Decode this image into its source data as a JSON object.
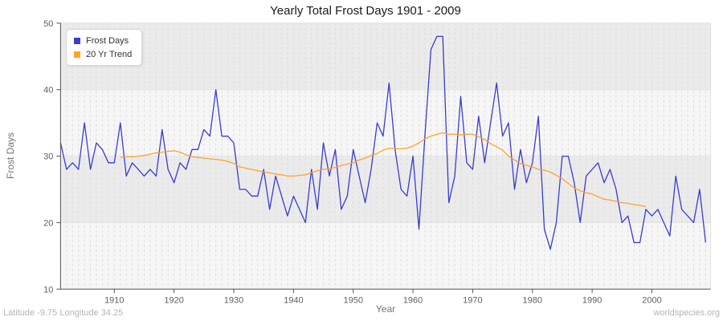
{
  "title": "Yearly Total Frost Days 1901 - 2009",
  "footer": {
    "left": "Latitude -9.75 Longitude 34.25",
    "right": "worldspecies.org"
  },
  "legend": [
    {
      "label": "Frost Days",
      "color": "#3b3bd1"
    },
    {
      "label": "20 Yr Trend",
      "color": "#ffa428"
    }
  ],
  "colors": {
    "frost_line": "#3b3bd1",
    "trend_line": "#ffa428",
    "band_dark": "#ebebeb",
    "band_light": "#f6f6f6",
    "grid": "#dcdcdc",
    "hgrid": "#e2e2e2",
    "spine": "#555555",
    "tick_text": "#606060",
    "axis_label": "#757575",
    "title_text": "#1a1a1a"
  },
  "chart_data": {
    "type": "line",
    "title": "Yearly Total Frost Days 1901 - 2009",
    "xlabel": "Year",
    "ylabel": "Frost Days",
    "xlim": [
      1901,
      2009
    ],
    "ylim": [
      10,
      50
    ],
    "xticks": [
      1910,
      1920,
      1930,
      1940,
      1950,
      1960,
      1970,
      1980,
      1990,
      2000
    ],
    "yticks": [
      10,
      20,
      30,
      40,
      50
    ],
    "grid": "vertical yearly dashed lines, alternating horizontal bands",
    "legend_position": "top-left",
    "series": [
      {
        "name": "Frost Days",
        "color": "#3b3bd1",
        "x_start": 1901,
        "x_step": 1,
        "values": [
          32,
          28,
          29,
          28,
          35,
          28,
          32,
          31,
          29,
          29,
          35,
          27,
          29,
          28,
          27,
          28,
          27,
          34,
          28,
          26,
          29,
          28,
          31,
          31,
          34,
          33,
          40,
          33,
          33,
          32,
          25,
          25,
          24,
          24,
          28,
          22,
          27,
          24,
          21,
          24,
          22,
          20,
          28,
          22,
          32,
          27,
          31,
          22,
          24,
          31,
          27,
          23,
          28,
          35,
          33,
          41,
          31,
          25,
          24,
          30,
          19,
          33,
          46,
          48,
          48,
          23,
          27,
          39,
          29,
          28,
          36,
          29,
          35,
          41,
          33,
          35,
          25,
          31,
          26,
          29,
          36,
          19,
          16,
          20,
          30,
          30,
          26,
          20,
          27,
          28,
          29,
          26,
          28,
          25,
          20,
          21,
          17,
          17,
          22,
          21,
          22,
          20,
          18,
          27,
          22,
          21,
          20,
          25,
          17
        ]
      },
      {
        "name": "20 Yr Trend",
        "color": "#ffa428",
        "x_start": 1911,
        "x_step": 1,
        "values": [
          29.8,
          29.9,
          29.9,
          30.0,
          30.1,
          30.3,
          30.5,
          30.6,
          30.7,
          30.8,
          30.6,
          30.2,
          29.9,
          29.8,
          29.7,
          29.6,
          29.5,
          29.4,
          29.2,
          28.9,
          28.4,
          28.2,
          28.0,
          27.8,
          27.6,
          27.5,
          27.3,
          27.2,
          27.0,
          27.0,
          27.1,
          27.2,
          27.5,
          27.8,
          28.0,
          28.1,
          28.3,
          28.6,
          28.8,
          29.0,
          29.4,
          29.7,
          30.1,
          30.4,
          30.9,
          31.2,
          31.1,
          31.1,
          31.2,
          31.5,
          32.0,
          32.6,
          33.0,
          33.3,
          33.5,
          33.3,
          33.3,
          33.2,
          33.3,
          33.3,
          32.9,
          32.5,
          31.9,
          31.4,
          30.9,
          30.0,
          29.4,
          28.9,
          28.6,
          28.4,
          28.0,
          27.9,
          27.6,
          27.1,
          26.6,
          25.9,
          25.2,
          24.8,
          24.5,
          24.3,
          23.9,
          23.5,
          23.4,
          23.2,
          23.0,
          22.9,
          22.7,
          22.6,
          22.4
        ]
      }
    ]
  }
}
